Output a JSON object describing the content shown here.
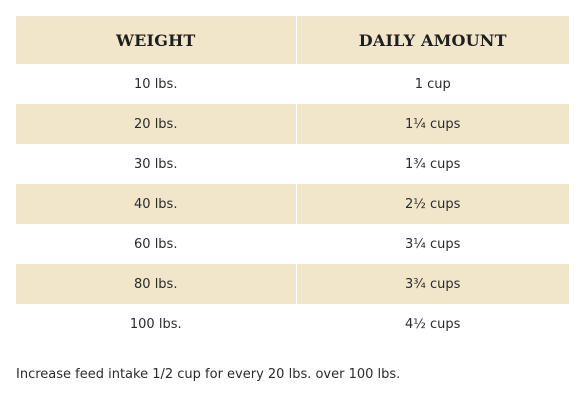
{
  "table": {
    "headers": {
      "weight": "WEIGHT",
      "amount": "DAILY AMOUNT"
    },
    "rows": [
      {
        "weight": "10 lbs.",
        "amount": "1 cup"
      },
      {
        "weight": "20 lbs.",
        "amount": "1¼ cups"
      },
      {
        "weight": "30 lbs.",
        "amount": "1¾ cups"
      },
      {
        "weight": "40 lbs.",
        "amount": "2½ cups"
      },
      {
        "weight": "60 lbs.",
        "amount": "3¼ cups"
      },
      {
        "weight": "80 lbs.",
        "amount": "3¾ cups"
      },
      {
        "weight": "100 lbs.",
        "amount": "4½ cups"
      }
    ]
  },
  "footnote": "Increase feed intake 1/2 cup for every 20 lbs. over 100 lbs.",
  "colors": {
    "row_shade": "#f1e6ca",
    "text": "#2b2b2b"
  }
}
